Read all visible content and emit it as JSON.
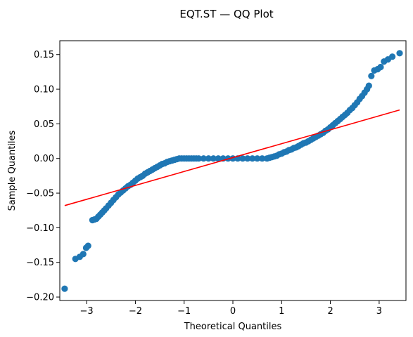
{
  "chart_data": {
    "type": "scatter",
    "title": "EQT.ST — QQ Plot",
    "xlabel": "Theoretical Quantiles",
    "ylabel": "Sample Quantiles",
    "xlim": [
      -3.55,
      3.55
    ],
    "ylim": [
      -0.205,
      0.17
    ],
    "grid": false,
    "x_ticks": [
      -3,
      -2,
      -1,
      0,
      1,
      2,
      3
    ],
    "x_tick_labels": [
      "−3",
      "−2",
      "−1",
      "0",
      "1",
      "2",
      "3"
    ],
    "y_ticks": [
      -0.2,
      -0.15,
      -0.1,
      -0.05,
      0.0,
      0.05,
      0.1,
      0.15
    ],
    "y_tick_labels": [
      "−0.20",
      "−0.15",
      "−0.10",
      "−0.05",
      "0.00",
      "0.05",
      "0.10",
      "0.15"
    ],
    "marker_color": "#1f77b4",
    "reference_line": {
      "color": "#ff0000",
      "x": [
        -3.45,
        3.42
      ],
      "y": [
        -0.068,
        0.07
      ]
    },
    "points": {
      "x": [
        -3.45,
        -3.23,
        -3.14,
        -3.07,
        -3.01,
        -2.97,
        -2.88,
        -2.84,
        -2.8,
        -2.76,
        -2.72,
        -2.68,
        -2.64,
        -2.6,
        -2.55,
        -2.5,
        -2.45,
        -2.4,
        -2.35,
        -2.3,
        -2.25,
        -2.2,
        -2.15,
        -2.1,
        -2.05,
        -2.0,
        -1.95,
        -1.9,
        -1.85,
        -1.8,
        -1.75,
        -1.7,
        -1.65,
        -1.6,
        -1.55,
        -1.5,
        -1.45,
        -1.4,
        -1.35,
        -1.3,
        -1.25,
        -1.2,
        -1.15,
        -1.1,
        -1.05,
        -1.0,
        -0.95,
        -0.9,
        -0.85,
        -0.8,
        -0.75,
        -0.7,
        -0.6,
        -0.5,
        -0.4,
        -0.3,
        -0.2,
        -0.1,
        0.0,
        0.1,
        0.2,
        0.3,
        0.4,
        0.5,
        0.6,
        0.7,
        0.75,
        0.8,
        0.85,
        0.9,
        0.95,
        1.0,
        1.05,
        1.1,
        1.15,
        1.2,
        1.25,
        1.3,
        1.35,
        1.4,
        1.45,
        1.5,
        1.55,
        1.6,
        1.65,
        1.7,
        1.75,
        1.8,
        1.85,
        1.9,
        1.95,
        2.0,
        2.05,
        2.1,
        2.15,
        2.2,
        2.25,
        2.3,
        2.35,
        2.4,
        2.45,
        2.5,
        2.55,
        2.6,
        2.65,
        2.7,
        2.75,
        2.79,
        2.84,
        2.9,
        2.97,
        3.03,
        3.1,
        3.18,
        3.27,
        3.42
      ],
      "y": [
        -0.188,
        -0.145,
        -0.142,
        -0.138,
        -0.129,
        -0.126,
        -0.089,
        -0.088,
        -0.087,
        -0.084,
        -0.081,
        -0.078,
        -0.075,
        -0.072,
        -0.068,
        -0.064,
        -0.06,
        -0.056,
        -0.052,
        -0.049,
        -0.046,
        -0.043,
        -0.04,
        -0.038,
        -0.035,
        -0.032,
        -0.029,
        -0.027,
        -0.025,
        -0.022,
        -0.02,
        -0.018,
        -0.016,
        -0.014,
        -0.012,
        -0.01,
        -0.008,
        -0.007,
        -0.005,
        -0.004,
        -0.003,
        -0.002,
        -0.001,
        0.0,
        0.0,
        0.0,
        0.0,
        0.0,
        0.0,
        0.0,
        0.0,
        0.0,
        0.0,
        0.0,
        0.0,
        0.0,
        0.0,
        0.0,
        0.0,
        0.0,
        0.0,
        0.0,
        0.0,
        0.0,
        0.0,
        0.0,
        0.001,
        0.002,
        0.003,
        0.004,
        0.006,
        0.007,
        0.009,
        0.01,
        0.012,
        0.013,
        0.015,
        0.016,
        0.018,
        0.02,
        0.022,
        0.023,
        0.025,
        0.027,
        0.029,
        0.031,
        0.033,
        0.035,
        0.037,
        0.04,
        0.042,
        0.045,
        0.048,
        0.051,
        0.054,
        0.057,
        0.06,
        0.063,
        0.066,
        0.07,
        0.073,
        0.077,
        0.081,
        0.086,
        0.09,
        0.095,
        0.1,
        0.105,
        0.119,
        0.127,
        0.129,
        0.132,
        0.14,
        0.143,
        0.147,
        0.152
      ]
    }
  }
}
